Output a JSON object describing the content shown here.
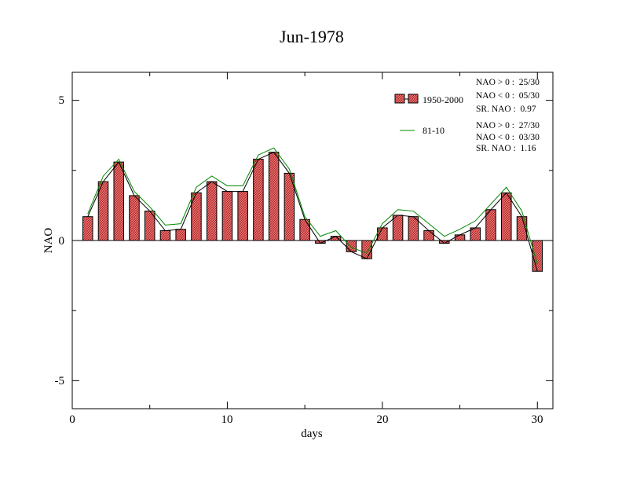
{
  "chart_data": {
    "type": "bar",
    "title": "Jun-1978",
    "xlabel": "days",
    "ylabel": "NAO",
    "xlim": [
      0,
      31
    ],
    "ylim": [
      -6,
      6
    ],
    "xticks": [
      "0",
      "10",
      "20",
      "30"
    ],
    "xtick_values": [
      0,
      10,
      20,
      30
    ],
    "yticks": [
      "-5",
      "0",
      "5"
    ],
    "ytick_values": [
      -5,
      0,
      5
    ],
    "x": [
      1,
      2,
      3,
      4,
      5,
      6,
      7,
      8,
      9,
      10,
      11,
      12,
      13,
      14,
      15,
      16,
      17,
      18,
      19,
      20,
      21,
      22,
      23,
      24,
      25,
      26,
      27,
      28,
      29,
      30
    ],
    "series": [
      {
        "name": "1950-2000",
        "type": "bar",
        "color": "#ff6666",
        "values": [
          0.85,
          2.1,
          2.8,
          1.6,
          1.05,
          0.35,
          0.4,
          1.7,
          2.1,
          1.75,
          1.75,
          2.9,
          3.15,
          2.4,
          0.75,
          -0.1,
          0.15,
          -0.4,
          -0.65,
          0.45,
          0.9,
          0.85,
          0.35,
          -0.1,
          0.2,
          0.45,
          1.1,
          1.7,
          0.85,
          -1.1
        ]
      },
      {
        "name": "81-10",
        "type": "line",
        "color": "#008800",
        "values": [
          0.95,
          2.3,
          2.9,
          1.75,
          1.2,
          0.55,
          0.6,
          1.9,
          2.3,
          1.95,
          1.95,
          3.05,
          3.3,
          2.55,
          0.85,
          0.15,
          0.35,
          -0.25,
          -0.45,
          0.6,
          1.1,
          1.05,
          0.6,
          0.15,
          0.4,
          0.7,
          1.3,
          1.9,
          1.05,
          -0.85
        ]
      }
    ],
    "legend_position": "top-right",
    "annotations": {
      "group1": [
        "NAO > 0 :  25/30",
        "NAO < 0 :  05/30",
        "SR. NAO :  0.97"
      ],
      "group2": [
        "NAO > 0 :  27/30",
        "NAO < 0 :  03/30",
        "SR. NAO :  1.16"
      ]
    },
    "grid": false
  }
}
